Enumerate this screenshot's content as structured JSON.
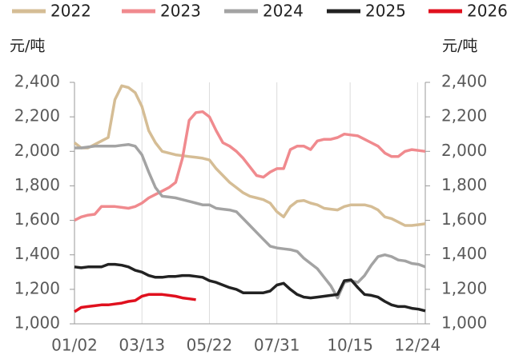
{
  "chart_data": {
    "type": "line",
    "unit_left": "元/吨",
    "unit_right": "元/吨",
    "x": [
      2,
      9,
      16,
      23,
      30,
      37,
      44,
      51,
      58,
      65,
      72,
      79,
      86,
      93,
      100,
      107,
      114,
      121,
      128,
      135,
      142,
      149,
      156,
      163,
      170,
      177,
      184,
      191,
      198,
      205,
      212,
      219,
      226,
      233,
      240,
      247,
      254,
      261,
      268,
      275,
      282,
      289,
      296,
      303,
      310,
      317,
      324,
      331,
      338,
      345,
      352,
      359,
      366
    ],
    "xlim": [
      2,
      366
    ],
    "xticks": [
      {
        "value": 2,
        "label": "01/02"
      },
      {
        "value": 72,
        "label": "03/13"
      },
      {
        "value": 142,
        "label": "05/22"
      },
      {
        "value": 212,
        "label": "07/31"
      },
      {
        "value": 288,
        "label": "10/15"
      },
      {
        "value": 358,
        "label": "12/24"
      }
    ],
    "ylim": [
      1000,
      2400
    ],
    "yticks": [
      {
        "value": 1000,
        "label": "1,000"
      },
      {
        "value": 1200,
        "label": "1,200"
      },
      {
        "value": 1400,
        "label": "1,400"
      },
      {
        "value": 1600,
        "label": "1,600"
      },
      {
        "value": 1800,
        "label": "1,800"
      },
      {
        "value": 2000,
        "label": "2,000"
      },
      {
        "value": 2200,
        "label": "2,200"
      },
      {
        "value": 2400,
        "label": "2,400"
      }
    ],
    "y2lim": [
      1000,
      2400
    ],
    "y2ticks": [
      {
        "value": 1000,
        "label": "1,000"
      },
      {
        "value": 1200,
        "label": "1,200"
      },
      {
        "value": 1400,
        "label": "1,400"
      },
      {
        "value": 1600,
        "label": "1,600"
      },
      {
        "value": 1800,
        "label": "1,800"
      },
      {
        "value": 2000,
        "label": "2,000"
      },
      {
        "value": 2200,
        "label": "2,200"
      },
      {
        "value": 2400,
        "label": "2,400"
      }
    ],
    "grid": "x",
    "legend": "top",
    "series": [
      {
        "name": "2022",
        "color": "#d5bd95",
        "values": [
          2050,
          2020,
          2020,
          2040,
          2060,
          2080,
          2300,
          2380,
          2370,
          2340,
          2260,
          2120,
          2050,
          2000,
          1990,
          1980,
          1975,
          1970,
          1965,
          1960,
          1950,
          1900,
          1860,
          1820,
          1790,
          1760,
          1740,
          1730,
          1720,
          1700,
          1650,
          1620,
          1680,
          1710,
          1715,
          1700,
          1690,
          1670,
          1665,
          1660,
          1680,
          1690,
          1690,
          1690,
          1680,
          1660,
          1620,
          1610,
          1590,
          1570,
          1570,
          1575,
          1580
        ]
      },
      {
        "name": "2023",
        "color": "#f08a8e",
        "values": [
          1600,
          1620,
          1630,
          1635,
          1680,
          1680,
          1680,
          1675,
          1670,
          1680,
          1700,
          1730,
          1750,
          1770,
          1790,
          1820,
          1960,
          2180,
          2225,
          2230,
          2200,
          2120,
          2050,
          2030,
          2000,
          1960,
          1910,
          1860,
          1850,
          1880,
          1900,
          1900,
          2010,
          2030,
          2030,
          2010,
          2060,
          2070,
          2070,
          2080,
          2100,
          2095,
          2090,
          2070,
          2050,
          2030,
          1990,
          1970,
          1970,
          2000,
          2010,
          2005,
          2000
        ]
      },
      {
        "name": "2024",
        "color": "#a3a3a3",
        "values": [
          2020,
          2020,
          2025,
          2030,
          2030,
          2030,
          2030,
          2035,
          2040,
          2030,
          1980,
          1880,
          1790,
          1740,
          1735,
          1730,
          1720,
          1710,
          1700,
          1690,
          1690,
          1670,
          1665,
          1660,
          1650,
          1610,
          1570,
          1530,
          1490,
          1450,
          1440,
          1435,
          1430,
          1420,
          1380,
          1350,
          1320,
          1270,
          1220,
          1150,
          1240,
          1250,
          1240,
          1280,
          1340,
          1390,
          1400,
          1390,
          1370,
          1365,
          1350,
          1345,
          1330
        ]
      },
      {
        "name": "2025",
        "color": "#222222",
        "values": [
          1330,
          1325,
          1330,
          1330,
          1330,
          1345,
          1345,
          1340,
          1330,
          1310,
          1300,
          1280,
          1270,
          1270,
          1275,
          1275,
          1280,
          1280,
          1275,
          1270,
          1250,
          1240,
          1225,
          1210,
          1200,
          1180,
          1180,
          1180,
          1180,
          1190,
          1225,
          1235,
          1200,
          1170,
          1155,
          1150,
          1155,
          1160,
          1165,
          1170,
          1250,
          1255,
          1210,
          1170,
          1165,
          1155,
          1130,
          1110,
          1100,
          1100,
          1090,
          1085,
          1075
        ]
      },
      {
        "name": "2026",
        "color": "#e0101e",
        "values": [
          1070,
          1095,
          1100,
          1105,
          1110,
          1110,
          1115,
          1120,
          1130,
          1135,
          1160,
          1170,
          1170,
          1170,
          1165,
          1160,
          1150,
          1145,
          1140,
          null,
          null,
          null,
          null,
          null,
          null,
          null,
          null,
          null,
          null,
          null,
          null,
          null,
          null,
          null,
          null,
          null,
          null,
          null,
          null,
          null,
          null,
          null,
          null,
          null,
          null,
          null,
          null,
          null,
          null,
          null,
          null,
          null,
          null
        ]
      }
    ]
  }
}
